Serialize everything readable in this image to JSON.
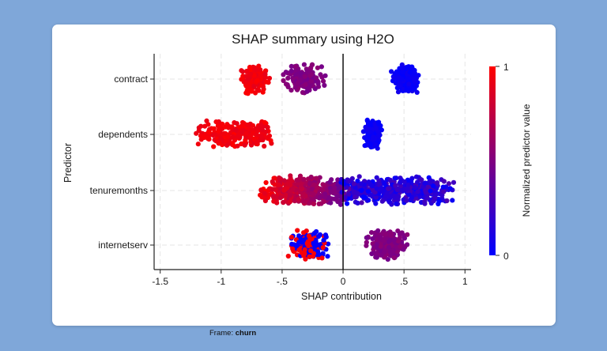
{
  "card": {
    "frame_label": "Frame:",
    "frame_name": "churn"
  },
  "chart_data": {
    "type": "scatter",
    "title": "SHAP summary using H2O",
    "xlabel": "SHAP contribution",
    "ylabel": "Predictor",
    "xlim": [
      -1.55,
      1.05
    ],
    "xticks": [
      -1.5,
      -1,
      -0.5,
      0,
      0.5,
      1
    ],
    "xtick_labels": [
      "-1.5",
      "-1",
      "-.5",
      "0",
      ".5",
      "1"
    ],
    "grid": true,
    "categories": [
      "contract",
      "dependents",
      "tenuremonths",
      "internetserv"
    ],
    "colorbar": {
      "label": "Normalized predictor value",
      "min": 0,
      "max": 1,
      "min_label": "0",
      "max_label": "1",
      "color_low": "#0000ff",
      "color_mid": "#800080",
      "color_high": "#ff0000"
    },
    "series": [
      {
        "predictor": "contract",
        "clusters": [
          {
            "center": -0.72,
            "spread": 0.09,
            "value_low": 0.9,
            "value_high": 1.0,
            "n": 130
          },
          {
            "center": -0.33,
            "spread": 0.12,
            "value_low": 0.45,
            "value_high": 0.55,
            "n": 180
          },
          {
            "center": 0.52,
            "spread": 0.07,
            "value_low": 0.0,
            "value_high": 0.08,
            "n": 240
          }
        ]
      },
      {
        "predictor": "dependents",
        "clusters": [
          {
            "center": -0.9,
            "spread": 0.33,
            "value_low": 0.9,
            "value_high": 1.0,
            "n": 230
          },
          {
            "center": 0.24,
            "spread": 0.05,
            "value_low": 0.0,
            "value_high": 0.08,
            "n": 260
          }
        ]
      },
      {
        "predictor": "tenuremonths",
        "clusters": [
          {
            "center": -0.3,
            "spread": 0.4,
            "value_low": 0.35,
            "value_high": 1.0,
            "n": 420,
            "gradient": "left-red"
          },
          {
            "center": 0.45,
            "spread": 0.5,
            "value_low": 0.0,
            "value_high": 0.3,
            "n": 420
          }
        ]
      },
      {
        "predictor": "internetserv",
        "clusters": [
          {
            "center": -0.28,
            "spread": 0.11,
            "value_low": 0.0,
            "value_high": 1.0,
            "n": 230,
            "mixed": true
          },
          {
            "center": 0.36,
            "spread": 0.11,
            "value_low": 0.45,
            "value_high": 0.55,
            "n": 240
          }
        ]
      }
    ]
  }
}
